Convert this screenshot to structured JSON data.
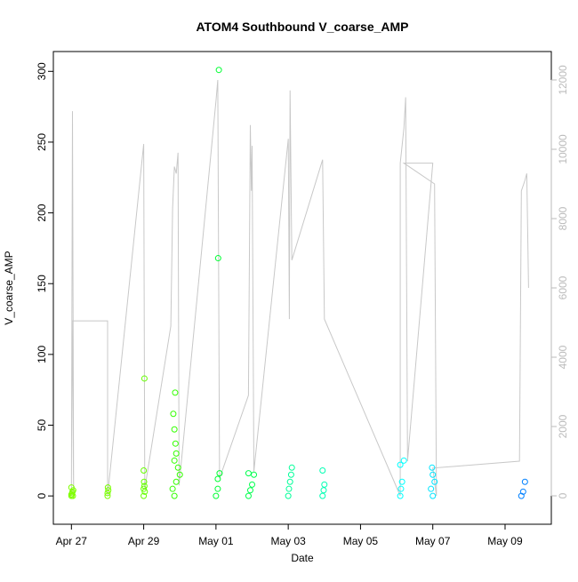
{
  "chart_data": {
    "type": "scatter",
    "title": "ATOM4 Southbound V_coarse_AMP",
    "x_label": "Date",
    "y_label": "V_coarse_AMP",
    "xlim": [
      26.5,
      40.28
    ],
    "xticks": [
      {
        "value": 27,
        "label": "Apr 27"
      },
      {
        "value": 29,
        "label": "Apr 29"
      },
      {
        "value": 31,
        "label": "May 01"
      },
      {
        "value": 33,
        "label": "May 03"
      },
      {
        "value": 35,
        "label": "May 05"
      },
      {
        "value": 37,
        "label": "May 07"
      },
      {
        "value": 39,
        "label": "May 09"
      }
    ],
    "ylim": [
      -20,
      314
    ],
    "yticks": [
      0,
      50,
      100,
      150,
      200,
      250,
      300
    ],
    "y2lim": [
      -820,
      12820
    ],
    "y2ticks": [
      0,
      2000,
      4000,
      6000,
      8000,
      10000,
      12000
    ],
    "series": [
      {
        "color": "#7fff00",
        "x": [
          27.0,
          27.0,
          27.02,
          27.03,
          27.0,
          27.05,
          27.04,
          27.01
        ],
        "values": [
          0,
          1,
          2,
          3,
          6,
          4,
          0,
          1
        ]
      },
      {
        "color": "#7aff00",
        "x": [
          28.0,
          28.0,
          28.02,
          28.01
        ],
        "values": [
          0,
          2,
          4,
          6
        ]
      },
      {
        "color": "#66ff00",
        "x": [
          29.0,
          29.0,
          29.01,
          29.0,
          29.02,
          29.03,
          29.02
        ],
        "values": [
          0,
          5,
          10,
          18,
          83,
          3,
          7
        ]
      },
      {
        "color": "#33ff00",
        "x": [
          29.85,
          29.8,
          29.9,
          29.95,
          29.85,
          29.88,
          29.85,
          29.82,
          29.87,
          30.0,
          29.9
        ],
        "values": [
          0,
          5,
          10,
          20,
          25,
          37,
          47,
          58,
          73,
          15,
          30
        ]
      },
      {
        "color": "#00ff33",
        "x": [
          31.0,
          31.05,
          31.05,
          31.1,
          31.06,
          31.08
        ],
        "values": [
          0,
          5,
          12,
          16,
          168,
          301
        ]
      },
      {
        "color": "#00ff4d",
        "x": [
          31.9,
          31.95,
          32.0,
          32.05,
          31.9
        ],
        "values": [
          0,
          4,
          8,
          15,
          16
        ]
      },
      {
        "color": "#00ff99",
        "x": [
          33.0,
          33.02,
          33.05,
          33.08,
          33.1
        ],
        "values": [
          0,
          5,
          10,
          15,
          20
        ]
      },
      {
        "color": "#00ffb3",
        "x": [
          33.95,
          33.98,
          34.0,
          33.95
        ],
        "values": [
          0,
          4,
          8,
          18
        ]
      },
      {
        "color": "#00ffff",
        "x": [
          36.1,
          36.12,
          36.15,
          36.1,
          36.2
        ],
        "values": [
          0,
          5,
          10,
          22,
          25
        ]
      },
      {
        "color": "#00e5ff",
        "x": [
          37.0,
          36.95,
          37.05,
          37.0,
          36.98
        ],
        "values": [
          0,
          5,
          10,
          15,
          20
        ]
      },
      {
        "color": "#0080ff",
        "x": [
          39.45,
          39.5,
          39.55
        ],
        "values": [
          0,
          3,
          10
        ]
      }
    ],
    "line": {
      "axis": "y2",
      "color": "#c8c8c8",
      "x": [
        27.0,
        27.03,
        27.06,
        27.02,
        28.0,
        28.0,
        29.0,
        29.03,
        29.75,
        29.8,
        29.85,
        29.9,
        29.95,
        29.98,
        31.0,
        31.05,
        31.1,
        31.9,
        31.95,
        31.98,
        32.0,
        32.05,
        33.0,
        33.03,
        33.05,
        33.1,
        33.95,
        34.0,
        36.1,
        36.1,
        36.2,
        36.25,
        36.3,
        37.0,
        36.2,
        37.05,
        37.1,
        37.0,
        39.4,
        39.45,
        39.55,
        39.6,
        39.65
      ],
      "values": [
        0,
        11100,
        0,
        5050,
        5050,
        0,
        10150,
        200,
        4900,
        8300,
        9500,
        9300,
        9900,
        300,
        11400,
        12000,
        500,
        2900,
        10700,
        8800,
        10100,
        700,
        10300,
        5100,
        11700,
        6800,
        9700,
        5100,
        0,
        9600,
        10600,
        11500,
        1000,
        9600,
        9600,
        9000,
        0,
        800,
        1000,
        8800,
        9100,
        9300,
        6000
      ]
    }
  }
}
